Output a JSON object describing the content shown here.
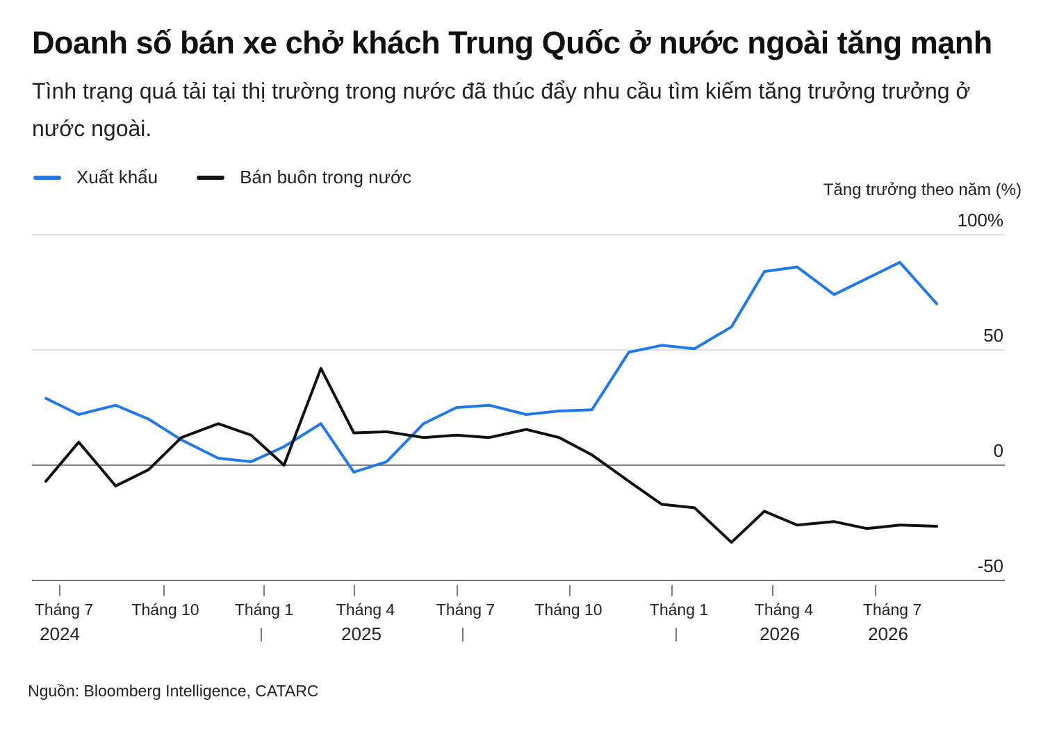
{
  "title": "Doanh số bán xe chở khách Trung Quốc ở nước ngoài tăng mạnh",
  "subtitle": "Tình trạng quá tải tại thị trường trong nước đã thúc đẩy nhu cầu tìm kiếm tăng trưởng trưởng ở nước ngoài.",
  "source": "Nguồn: Bloomberg Intelligence, CATARC",
  "chart_data": {
    "type": "line",
    "ylabel": "Tăng trưởng theo năm (%)",
    "ylim": [
      -52,
      100
    ],
    "yticks": [
      {
        "value": 100,
        "label": "100%"
      },
      {
        "value": 50,
        "label": "50"
      },
      {
        "value": 0,
        "label": "0"
      },
      {
        "value": -50,
        "label": "-50"
      }
    ],
    "grid": true,
    "legend_position": "top-left",
    "x": [
      2024.5,
      2024.58,
      2024.67,
      2024.75,
      2024.83,
      2024.92,
      2025.0,
      2025.08,
      2025.17,
      2025.25,
      2025.33,
      2025.42,
      2025.5,
      2025.58,
      2025.67,
      2025.75,
      2025.83,
      2025.92,
      2026.0,
      2026.08,
      2026.17,
      2026.25,
      2026.33,
      2026.42,
      2026.5,
      2026.58,
      2026.67
    ],
    "xticks": [
      {
        "label": "Tháng 7",
        "year": "2024"
      },
      {
        "label": "Tháng 10",
        "year": ""
      },
      {
        "label": "Tháng 1",
        "year": ""
      },
      {
        "label": "Tháng 4",
        "year": "2025"
      },
      {
        "label": "Tháng 7",
        "year": ""
      },
      {
        "label": "Tháng 10",
        "year": ""
      },
      {
        "label": "Tháng 1",
        "year": ""
      },
      {
        "label": "Tháng 4",
        "year": "2026"
      },
      {
        "label": "Tháng 7",
        "year": "2026"
      }
    ],
    "series": [
      {
        "name": "Xuất khẩu",
        "color": "#1f7ae8",
        "values": [
          29,
          22,
          26,
          20,
          11,
          3,
          1.5,
          8,
          18,
          -3,
          1.5,
          18,
          25,
          26,
          22,
          23.5,
          24,
          49,
          52,
          50.5,
          60,
          84,
          86,
          74,
          81,
          88,
          70
        ]
      },
      {
        "name": "Bán buôn trong nước",
        "color": "#111111",
        "values": [
          -7,
          10,
          -9,
          -2,
          12,
          18,
          13,
          0,
          42,
          14,
          14.5,
          12,
          13,
          12,
          15.5,
          12,
          4.5,
          -7,
          -17,
          -18.5,
          -33.5,
          -20,
          -26,
          -24.5,
          -27.5,
          -26,
          -26.5
        ]
      }
    ]
  }
}
